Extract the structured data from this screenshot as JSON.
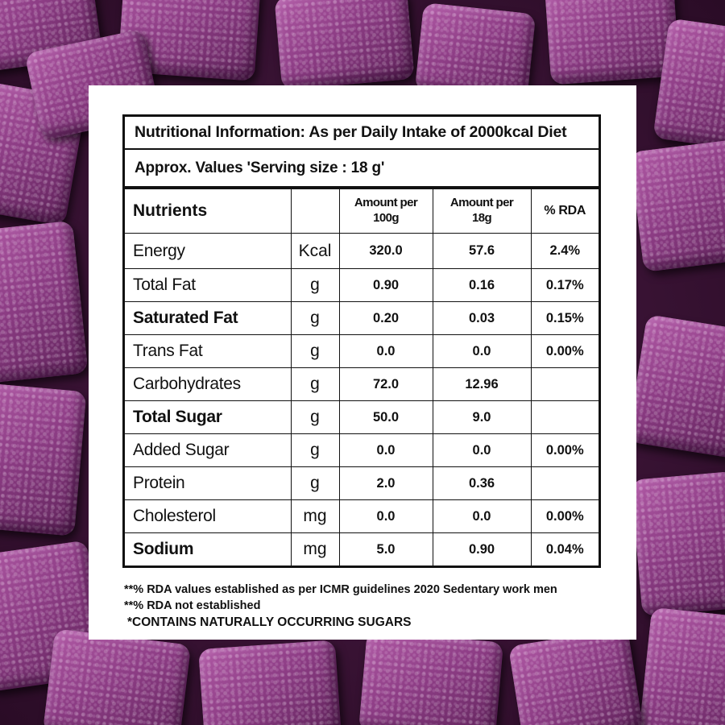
{
  "header": {
    "title": "Nutritional Information: As per Daily Intake of 2000kcal Diet",
    "serving": "Approx. Values 'Serving size : 18 g'"
  },
  "columns": {
    "nutrients": "Nutrients",
    "unit": "",
    "per100_line1": "Amount per",
    "per100_line2": "100g",
    "perServing_line1": "Amount per",
    "perServing_line2": "18g",
    "rda": "% RDA"
  },
  "rows": [
    {
      "name": "Energy",
      "unit": "Kcal",
      "per100": "320.0",
      "perServing": "57.6",
      "rda": "2.4%",
      "bold": false
    },
    {
      "name": "Total Fat",
      "unit": "g",
      "per100": "0.90",
      "perServing": "0.16",
      "rda": "0.17%",
      "bold": false
    },
    {
      "name": "Saturated Fat",
      "unit": "g",
      "per100": "0.20",
      "perServing": "0.03",
      "rda": "0.15%",
      "bold": true
    },
    {
      "name": "Trans Fat",
      "unit": "g",
      "per100": "0.0",
      "perServing": "0.0",
      "rda": "0.00%",
      "bold": false
    },
    {
      "name": "Carbohydrates",
      "unit": "g",
      "per100": "72.0",
      "perServing": "12.96",
      "rda": "",
      "bold": false
    },
    {
      "name": "Total Sugar",
      "unit": "g",
      "per100": "50.0",
      "perServing": "9.0",
      "rda": "",
      "bold": true
    },
    {
      "name": "Added Sugar",
      "unit": "g",
      "per100": "0.0",
      "perServing": "0.0",
      "rda": "0.00%",
      "bold": false
    },
    {
      "name": "Protein",
      "unit": "g",
      "per100": "2.0",
      "perServing": "0.36",
      "rda": "",
      "bold": false
    },
    {
      "name": "Cholesterol",
      "unit": "mg",
      "per100": "0.0",
      "perServing": "0.0",
      "rda": "0.00%",
      "bold": false
    },
    {
      "name": "Sodium",
      "unit": "mg",
      "per100": "5.0",
      "perServing": "0.90",
      "rda": "0.04%",
      "bold": true
    }
  ],
  "notes": [
    "**% RDA values established as per ICMR guidelines 2020 Sedentary work men",
    "**% RDA not established",
    "*CONTAINS NATURALLY OCCURRING SUGARS"
  ]
}
